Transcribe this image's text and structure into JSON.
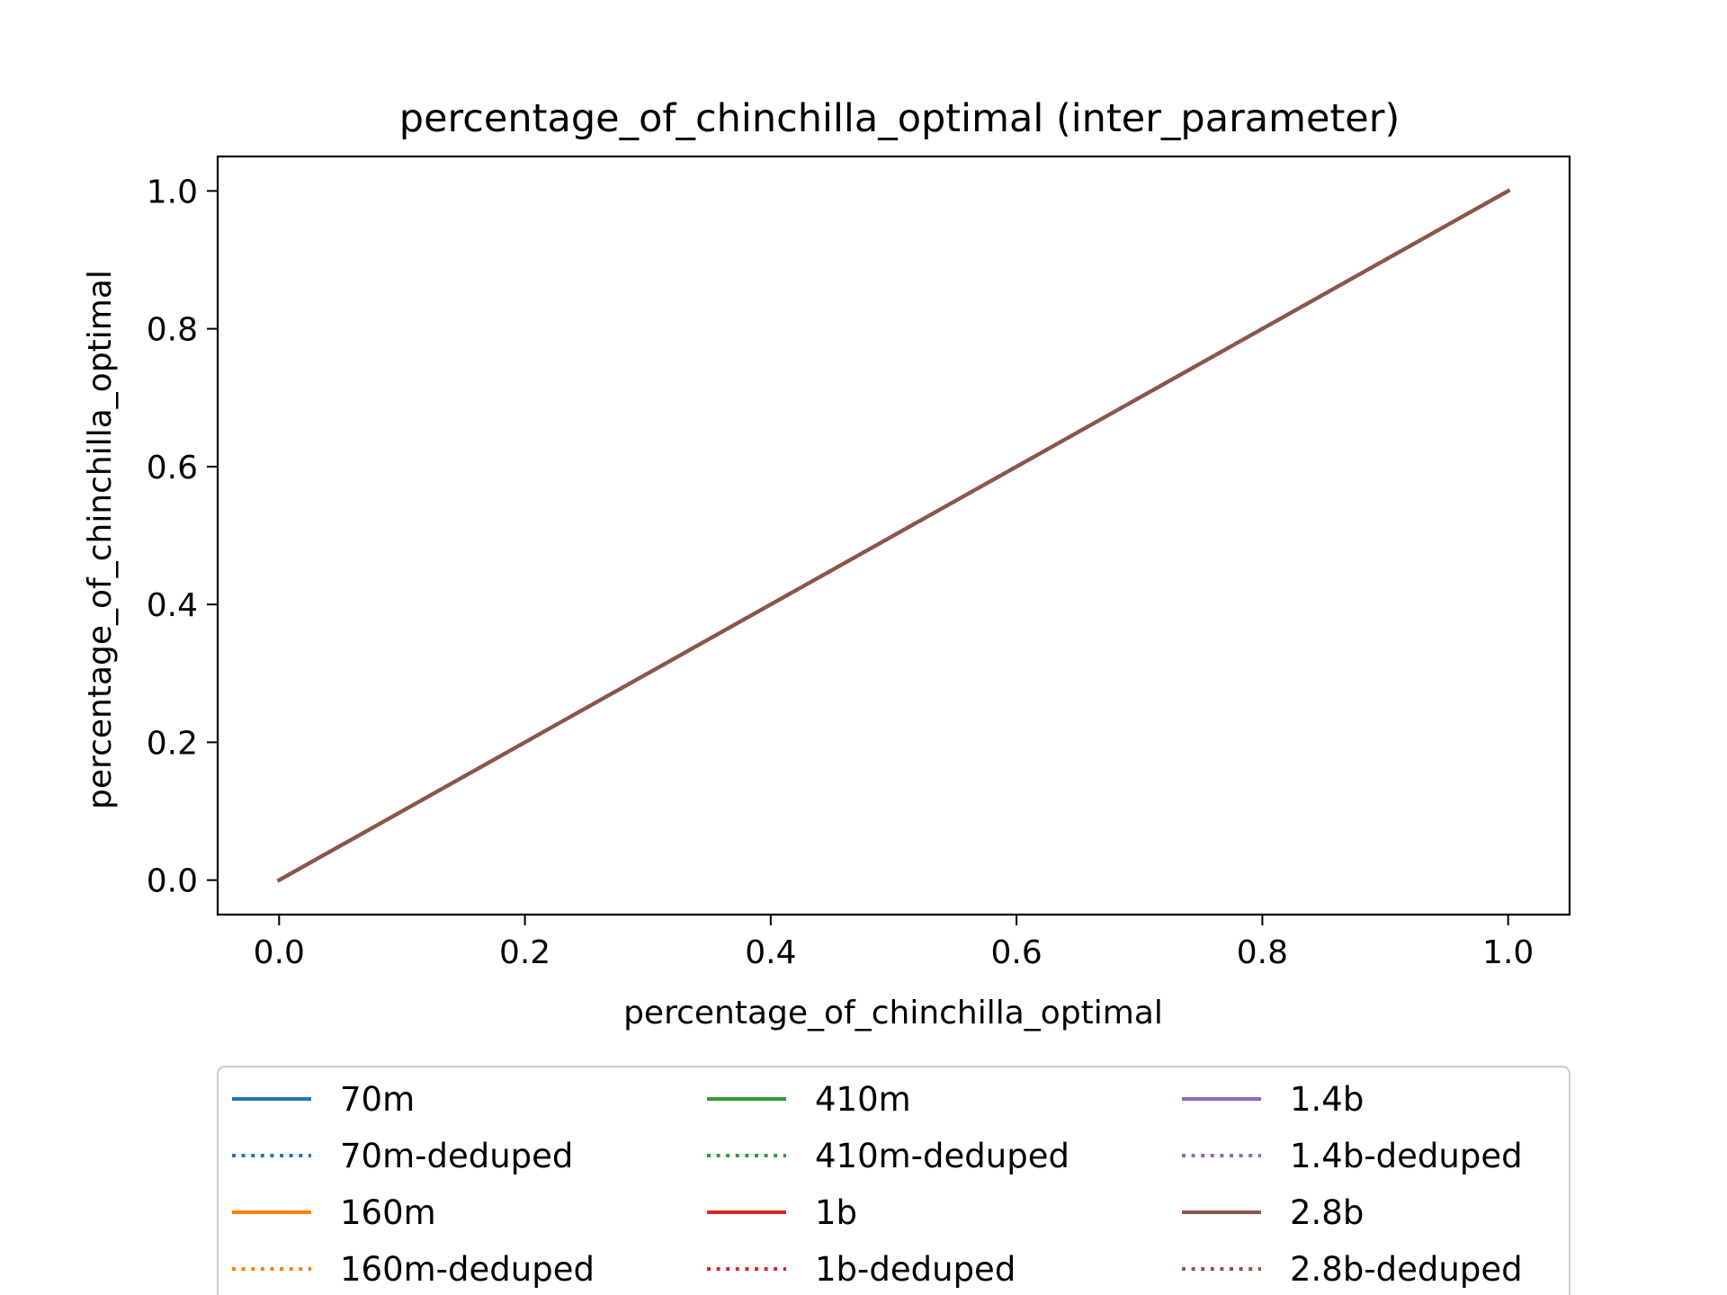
{
  "chart_data": {
    "type": "line",
    "title": "percentage_of_chinchilla_optimal (inter_parameter)",
    "xlabel": "percentage_of_chinchilla_optimal",
    "ylabel": "percentage_of_chinchilla_optimal",
    "xlim": [
      -0.05,
      1.05
    ],
    "ylim": [
      -0.05,
      1.05
    ],
    "xticks": [
      0.0,
      0.2,
      0.4,
      0.6,
      0.8,
      1.0
    ],
    "yticks": [
      0.0,
      0.2,
      0.4,
      0.6,
      0.8,
      1.0
    ],
    "xtick_labels": [
      "0.0",
      "0.2",
      "0.4",
      "0.6",
      "0.8",
      "1.0"
    ],
    "ytick_labels": [
      "0.0",
      "0.2",
      "0.4",
      "0.6",
      "0.8",
      "1.0"
    ],
    "grid": false,
    "legend": {
      "placement": "below-center",
      "columns": 3
    },
    "series": [
      {
        "name": "70m",
        "color": "#1f77b4",
        "style": "solid",
        "x": [
          0.0,
          1.0
        ],
        "y": [
          0.0,
          1.0
        ]
      },
      {
        "name": "70m-deduped",
        "color": "#1f77b4",
        "style": "dotted",
        "x": [
          0.0,
          1.0
        ],
        "y": [
          0.0,
          1.0
        ]
      },
      {
        "name": "160m",
        "color": "#ff7f0e",
        "style": "solid",
        "x": [
          0.0,
          1.0
        ],
        "y": [
          0.0,
          1.0
        ]
      },
      {
        "name": "160m-deduped",
        "color": "#ff7f0e",
        "style": "dotted",
        "x": [
          0.0,
          1.0
        ],
        "y": [
          0.0,
          1.0
        ]
      },
      {
        "name": "410m",
        "color": "#2ca02c",
        "style": "solid",
        "x": [
          0.0,
          1.0
        ],
        "y": [
          0.0,
          1.0
        ]
      },
      {
        "name": "410m-deduped",
        "color": "#2ca02c",
        "style": "dotted",
        "x": [
          0.0,
          1.0
        ],
        "y": [
          0.0,
          1.0
        ]
      },
      {
        "name": "1b",
        "color": "#d62728",
        "style": "solid",
        "x": [
          0.0,
          1.0
        ],
        "y": [
          0.0,
          1.0
        ]
      },
      {
        "name": "1b-deduped",
        "color": "#d62728",
        "style": "dotted",
        "x": [
          0.0,
          1.0
        ],
        "y": [
          0.0,
          1.0
        ]
      },
      {
        "name": "1.4b",
        "color": "#9467bd",
        "style": "solid",
        "x": [
          0.0,
          1.0
        ],
        "y": [
          0.0,
          1.0
        ]
      },
      {
        "name": "1.4b-deduped",
        "color": "#9467bd",
        "style": "dotted",
        "x": [
          0.0,
          1.0
        ],
        "y": [
          0.0,
          1.0
        ]
      },
      {
        "name": "2.8b",
        "color": "#8c564b",
        "style": "solid",
        "x": [
          0.0,
          1.0
        ],
        "y": [
          0.0,
          1.0
        ]
      },
      {
        "name": "2.8b-deduped",
        "color": "#8c564b",
        "style": "dotted",
        "x": [
          0.0,
          1.0
        ],
        "y": [
          0.0,
          1.0
        ]
      }
    ]
  }
}
